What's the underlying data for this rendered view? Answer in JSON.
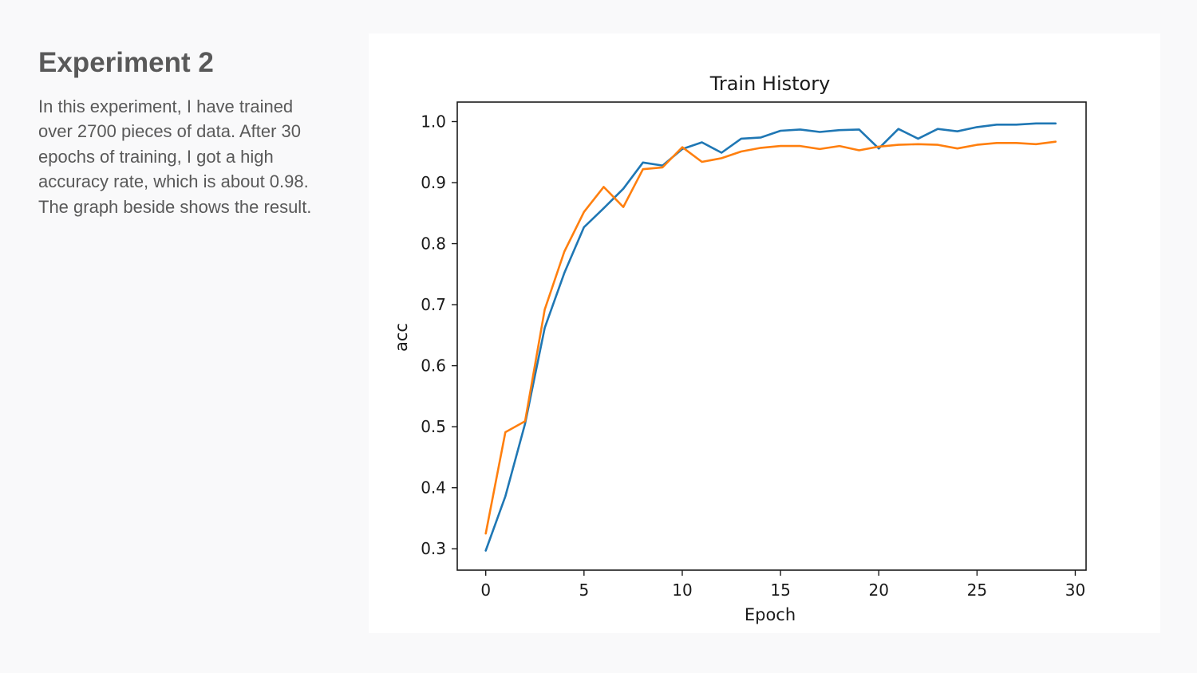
{
  "slide": {
    "title": "Experiment 2",
    "body_lines": [
      "In this experiment, I have trained",
      "over 2700 pieces of data. After 30",
      "epochs of training, I got a high",
      "accuracy rate, which is about 0.98.",
      "The graph beside shows the result."
    ]
  },
  "chart_data": {
    "type": "line",
    "title": "Train History",
    "xlabel": "Epoch",
    "ylabel": "acc",
    "xlim": [
      -1.45,
      30.55
    ],
    "ylim": [
      0.265,
      1.032
    ],
    "xticks": [
      0,
      5,
      10,
      15,
      20,
      25,
      30
    ],
    "yticks": [
      0.3,
      0.4,
      0.5,
      0.6,
      0.7,
      0.8,
      0.9,
      1.0
    ],
    "xtick_labels": [
      "0",
      "5",
      "10",
      "15",
      "20",
      "25",
      "30"
    ],
    "ytick_labels": [
      "0.3",
      "0.4",
      "0.5",
      "0.6",
      "0.7",
      "0.8",
      "0.9",
      "1.0"
    ],
    "grid": false,
    "legend": "none",
    "x": [
      0,
      1,
      2,
      3,
      4,
      5,
      6,
      7,
      8,
      9,
      10,
      11,
      12,
      13,
      14,
      15,
      16,
      17,
      18,
      19,
      20,
      21,
      22,
      23,
      24,
      25,
      26,
      27,
      28,
      29
    ],
    "series": [
      {
        "color": "#1f77b4",
        "values": [
          0.297,
          0.386,
          0.505,
          0.662,
          0.752,
          0.827,
          0.858,
          0.89,
          0.933,
          0.928,
          0.955,
          0.966,
          0.949,
          0.972,
          0.974,
          0.985,
          0.987,
          0.983,
          0.986,
          0.987,
          0.956,
          0.988,
          0.972,
          0.988,
          0.984,
          0.991,
          0.995,
          0.995,
          0.997,
          0.997
        ]
      },
      {
        "color": "#ff7f0e",
        "values": [
          0.325,
          0.491,
          0.509,
          0.692,
          0.787,
          0.852,
          0.893,
          0.86,
          0.922,
          0.925,
          0.958,
          0.934,
          0.94,
          0.951,
          0.957,
          0.96,
          0.96,
          0.955,
          0.96,
          0.953,
          0.959,
          0.962,
          0.963,
          0.962,
          0.956,
          0.962,
          0.965,
          0.965,
          0.963,
          0.967
        ]
      }
    ]
  }
}
